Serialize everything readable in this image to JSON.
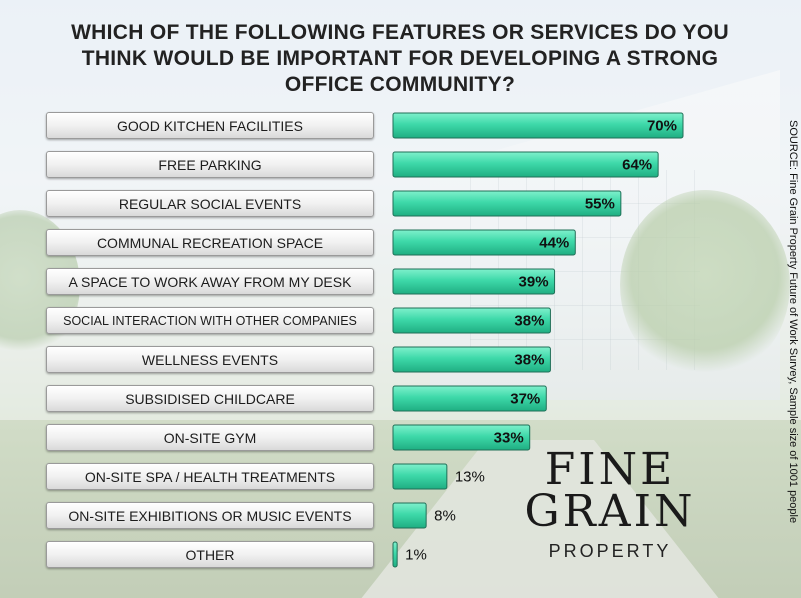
{
  "chart_data": {
    "type": "bar",
    "orientation": "horizontal",
    "title": "WHICH OF THE FOLLOWING FEATURES OR SERVICES DO YOU THINK WOULD BE IMPORTANT FOR DEVELOPING A STRONG OFFICE COMMUNITY?",
    "categories": [
      "GOOD KITCHEN FACILITIES",
      "FREE PARKING",
      "REGULAR SOCIAL EVENTS",
      "COMMUNAL RECREATION SPACE",
      "A SPACE TO WORK AWAY FROM MY DESK",
      "SOCIAL INTERACTION WITH OTHER COMPANIES",
      "WELLNESS EVENTS",
      "SUBSIDISED CHILDCARE",
      "ON-SITE GYM",
      "ON-SITE SPA / HEALTH TREATMENTS",
      "ON-SITE EXHIBITIONS OR MUSIC EVENTS",
      "OTHER"
    ],
    "values": [
      70,
      64,
      55,
      44,
      39,
      38,
      38,
      37,
      33,
      13,
      8,
      1
    ],
    "value_labels": [
      "70%",
      "64%",
      "55%",
      "44%",
      "39%",
      "38%",
      "38%",
      "37%",
      "33%",
      "13%",
      "8%",
      "1%"
    ],
    "unit": "%",
    "xlim": [
      0,
      100
    ],
    "grid": false,
    "bar_color": "#3ed9a9",
    "bar_border_color": "#1f6f57"
  },
  "logo": {
    "line1": "FINE",
    "line2": "GRAIN",
    "line3": "PROPERTY"
  },
  "source": "SOURCE: Fine Grain Property Future of Work Survey, Sample size of 1001 people"
}
